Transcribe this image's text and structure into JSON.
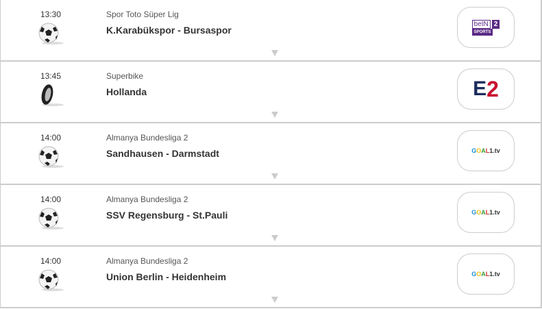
{
  "events": [
    {
      "time": "13:30",
      "sport_icon": "soccer-ball-icon",
      "league": "Spor Toto Süper Lig",
      "match": "K.Karabükspor - Bursaspor",
      "channel": "beIN SPORTS 2",
      "channel_logo": "bein-sports-2-logo",
      "brand_color": "#5b2a86"
    },
    {
      "time": "13:45",
      "sport_icon": "motorbike-tire-icon",
      "league": "Superbike",
      "match": "Hollanda",
      "channel": "Eurosport 2",
      "channel_logo": "eurosport-2-logo",
      "brand_color": "#c8102e"
    },
    {
      "time": "14:00",
      "sport_icon": "soccer-ball-icon",
      "league": "Almanya Bundesliga 2",
      "match": "Sandhausen - Darmstadt",
      "channel": "GOAL1.tv",
      "channel_logo": "goal1-tv-logo"
    },
    {
      "time": "14:00",
      "sport_icon": "soccer-ball-icon",
      "league": "Almanya Bundesliga 2",
      "match": "SSV Regensburg - St.Pauli",
      "channel": "GOAL1.tv",
      "channel_logo": "goal1-tv-logo"
    },
    {
      "time": "14:00",
      "sport_icon": "soccer-ball-icon",
      "league": "Almanya Bundesliga 2",
      "match": "Union Berlin - Heidenheim",
      "channel": "GOAL1.tv",
      "channel_logo": "goal1-tv-logo"
    }
  ]
}
